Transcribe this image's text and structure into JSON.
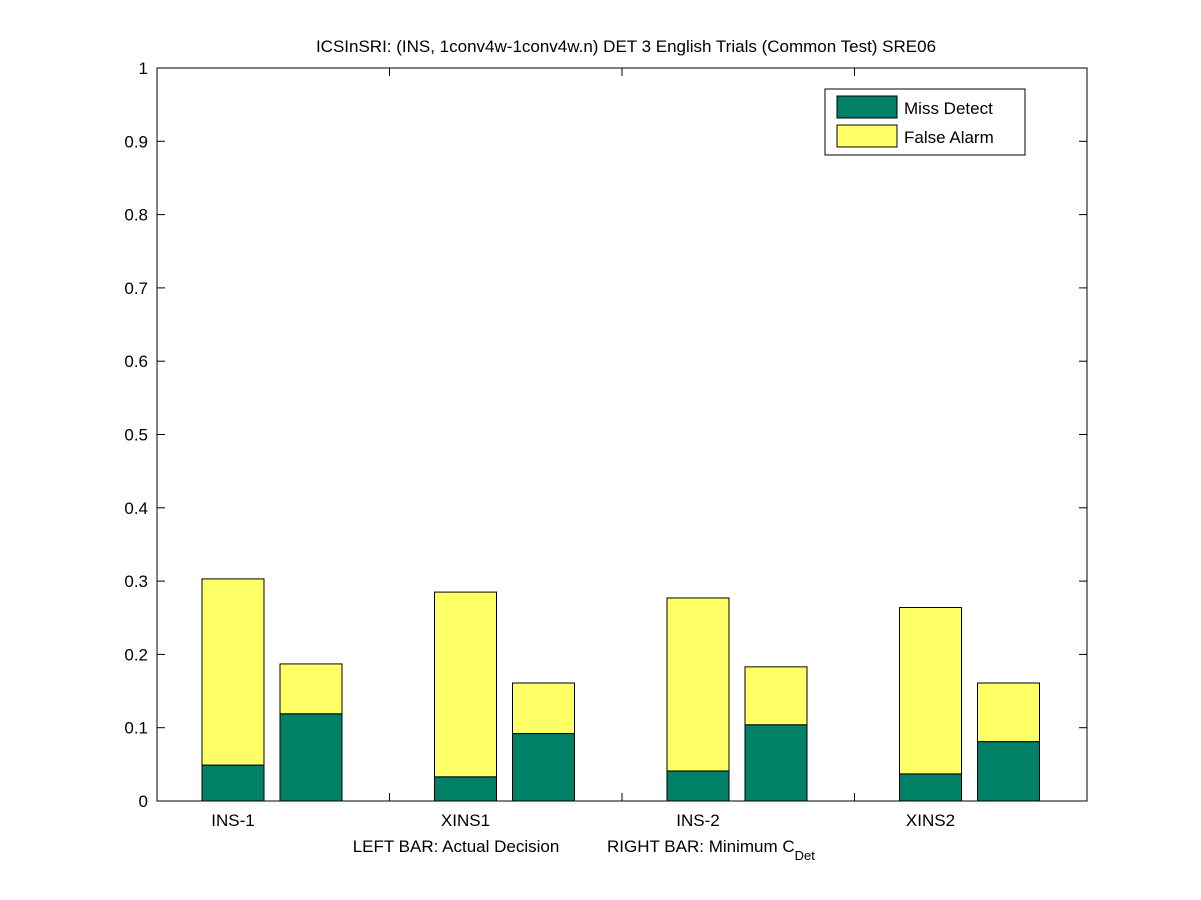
{
  "chart_data": {
    "type": "bar",
    "stacked": true,
    "title": "ICSInSRI: (INS, 1conv4w-1conv4w.n) DET 3 English Trials (Common Test) SRE06",
    "xlabel_left": "LEFT BAR: Actual Decision",
    "xlabel_right_main": "RIGHT BAR: Minimum C",
    "xlabel_right_sub": "Det",
    "categories": [
      "INS-1",
      "XINS1",
      "INS-2",
      "XINS2"
    ],
    "ylim": [
      0,
      1
    ],
    "yticks": [
      0,
      0.1,
      0.2,
      0.3,
      0.4,
      0.5,
      0.6,
      0.7,
      0.8,
      0.9,
      1
    ],
    "ytick_labels": [
      "0",
      "0.1",
      "0.2",
      "0.3",
      "0.4",
      "0.5",
      "0.6",
      "0.7",
      "0.8",
      "0.9",
      "1"
    ],
    "grid": false,
    "legend_position": "top-right",
    "series": [
      {
        "name": "Miss Detect",
        "color": "#008066",
        "actual": [
          0.049,
          0.033,
          0.041,
          0.037
        ],
        "minimum": [
          0.119,
          0.092,
          0.104,
          0.081
        ]
      },
      {
        "name": "False Alarm",
        "color": "#FFFF66",
        "actual": [
          0.254,
          0.252,
          0.236,
          0.227
        ],
        "minimum": [
          0.068,
          0.069,
          0.079,
          0.08
        ]
      }
    ]
  }
}
